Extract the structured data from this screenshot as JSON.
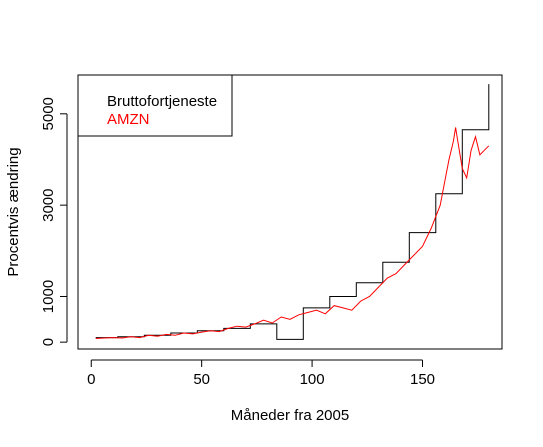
{
  "chart_data": {
    "type": "line",
    "title": "",
    "xlabel": "Måneder fra 2005",
    "ylabel": "Procentvis ændring",
    "xlim": [
      -6,
      186
    ],
    "ylim": [
      -150,
      5850
    ],
    "xticks": [
      0,
      50,
      100,
      150
    ],
    "yticks": [
      0,
      1000,
      3000,
      5000
    ],
    "grid": false,
    "legend": "top-left",
    "series": [
      {
        "name": "Bruttofortjeneste",
        "color": "#000000",
        "step": true,
        "x": [
          2,
          12,
          24,
          36,
          48,
          60,
          72,
          84,
          96,
          108,
          120,
          132,
          144,
          156,
          168,
          180
        ],
        "values": [
          100,
          120,
          150,
          200,
          250,
          300,
          400,
          60,
          750,
          1000,
          1300,
          1750,
          2400,
          3250,
          4650,
          5650
        ]
      },
      {
        "name": "AMZN",
        "color": "#ff0000",
        "step": false,
        "x": [
          2,
          6,
          10,
          14,
          18,
          22,
          26,
          30,
          34,
          38,
          42,
          46,
          50,
          54,
          58,
          62,
          66,
          70,
          74,
          78,
          82,
          86,
          90,
          94,
          98,
          102,
          106,
          110,
          114,
          118,
          122,
          126,
          130,
          134,
          138,
          142,
          146,
          150,
          154,
          158,
          160,
          162,
          164,
          165,
          166,
          168,
          170,
          172,
          174,
          176,
          178,
          180
        ],
        "values": [
          80,
          90,
          100,
          90,
          120,
          100,
          150,
          130,
          170,
          150,
          200,
          180,
          220,
          250,
          230,
          300,
          350,
          330,
          400,
          480,
          420,
          550,
          500,
          600,
          650,
          700,
          620,
          800,
          750,
          700,
          900,
          1000,
          1200,
          1400,
          1500,
          1700,
          1900,
          2100,
          2500,
          3000,
          3500,
          4000,
          4400,
          4700,
          4400,
          3800,
          3600,
          4200,
          4500,
          4100,
          4200,
          4300
        ]
      }
    ]
  }
}
